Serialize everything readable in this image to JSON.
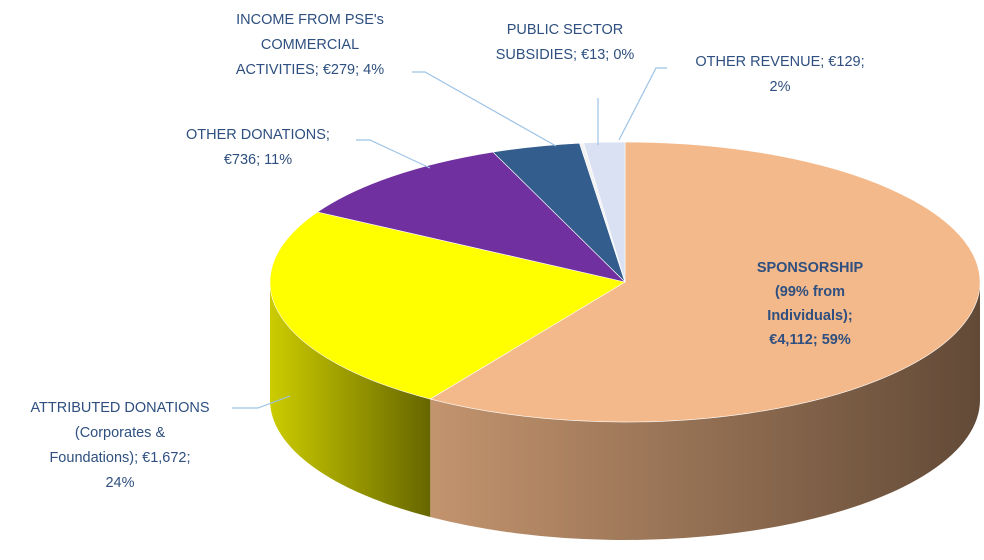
{
  "chart_data": {
    "type": "pie3d",
    "categories": [
      "SPONSORSHIP",
      "ATTRIBUTED DONATIONS",
      "OTHER DONATIONS",
      "INCOME FROM PSE's COMMERCIAL ACTIVITIES",
      "PUBLIC SECTOR SUBSIDIES",
      "OTHER REVENUE"
    ],
    "values": [
      4112,
      1672,
      736,
      279,
      13,
      129
    ],
    "value_labels": [
      "€4,112",
      "€1,672",
      "€736",
      "€279",
      "€13",
      "€129"
    ],
    "percents": [
      59,
      24,
      11,
      4,
      0,
      2
    ],
    "percent_labels": [
      "59%",
      "24%",
      "11%",
      "4%",
      "0%",
      "2%"
    ],
    "labels": [
      [
        "SPONSORSHIP",
        "(99% from",
        "Individuals);",
        "€4,112; 59%"
      ],
      [
        "ATTRIBUTED DONATIONS",
        "(Corporates &",
        "Foundations); €1,672;",
        "24%"
      ],
      [
        "OTHER DONATIONS;",
        "€736; 11%"
      ],
      [
        "INCOME FROM PSE's",
        "COMMERCIAL",
        "ACTIVITIES; €279; 4%"
      ],
      [
        "PUBLIC SECTOR",
        "SUBSIDIES; €13; 0%"
      ],
      [
        "OTHER REVENUE; €129;",
        "2%"
      ]
    ],
    "colors": [
      "#f4b98a",
      "#ffff00",
      "#7030a0",
      "#335d8c",
      "#f2f2f2",
      "#d9e1f2"
    ]
  }
}
